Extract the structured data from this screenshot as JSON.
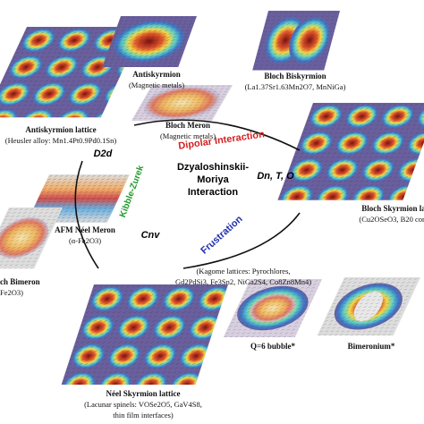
{
  "panels": [
    {
      "title": "Antiskyrmion",
      "subtitle": "(Magnetic metals)"
    },
    {
      "title": "Bloch Biskyrmion",
      "subtitle": "(La1.37Sr1.63Mn2O7, MnNiGa)"
    },
    {
      "title": "Antiskyrmion lattice",
      "subtitle": "(Heusler alloy: Mn1.4Pt0.9Pd0.1Sn)"
    },
    {
      "title": "Bloch Meron",
      "subtitle": "(Magnetic metals)"
    },
    {
      "title": "Bloch Skyrmion la",
      "subtitle": "(Cu2OSeO3, B20 com"
    },
    {
      "title": "AFM Néel Meron",
      "subtitle": "(α-Fe2O3)"
    },
    {
      "title": "ch Bimeron",
      "subtitle": "Fe2O3)"
    },
    {
      "title": "Néel Skyrmion lattice",
      "subtitle": "(Lacunar spinels: VOSe2O5, GaV4S8,",
      "subtitle2": "thin film interfaces)"
    },
    {
      "title": "Q=6 bubble*"
    },
    {
      "title": "Bimeronium*"
    }
  ],
  "center": {
    "line1": "Dzyaloshinskii-",
    "line2": "Moriya",
    "line3": "Interaction",
    "dipolar": "Dipolar Interaction",
    "kibble": "Kibble-Zurek",
    "frustration": "Frustration",
    "d2d": "D2d",
    "dn": "Dn, T, O",
    "cnv": "Cnv"
  },
  "kagome": {
    "line1": "(Kagome lattices: Pyrochlores,",
    "line2": "Gd2PdSi3, Fe3Sn2, NiGa2S4, Co8Zn8Mn4)"
  }
}
